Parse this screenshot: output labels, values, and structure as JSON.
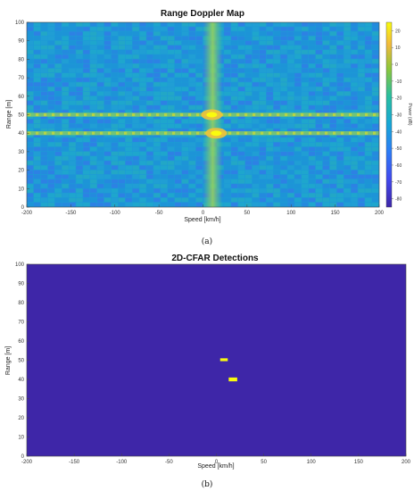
{
  "chart_data": [
    {
      "type": "heatmap",
      "title": "Range Doppler Map",
      "xlabel": "Speed [km/h]",
      "ylabel": "Range [m]",
      "xlim": [
        -200,
        200
      ],
      "ylim": [
        0,
        100
      ],
      "xticks": [
        -200,
        -150,
        -100,
        -50,
        0,
        50,
        100,
        150,
        200
      ],
      "yticks": [
        0,
        10,
        20,
        30,
        40,
        50,
        60,
        70,
        80,
        90,
        100
      ],
      "colormap": "parula",
      "colorbar": {
        "label": "Power (dB)",
        "range": [
          -85,
          25
        ],
        "ticks": [
          20,
          10,
          0,
          -10,
          -20,
          -30,
          -40,
          -50,
          -60,
          -70,
          -80
        ]
      },
      "targets": [
        {
          "speed": 10,
          "range": 50,
          "power_db": 20
        },
        {
          "speed": 15,
          "range": 40,
          "power_db": 20
        }
      ],
      "background_power_db": -55,
      "sublabel": "(a)"
    },
    {
      "type": "heatmap",
      "title": "2D-CFAR Detections",
      "xlabel": "Speed [km/h]",
      "ylabel": "Range [m]",
      "xlim": [
        -200,
        200
      ],
      "ylim": [
        0,
        100
      ],
      "xticks": [
        -200,
        -150,
        -100,
        -50,
        0,
        50,
        100,
        150,
        200
      ],
      "yticks": [
        0,
        10,
        20,
        30,
        40,
        50,
        60,
        70,
        80,
        90,
        100
      ],
      "background_color": "#3e26a8",
      "detection_color": "#f9fb0e",
      "detections": [
        {
          "x": [
            4,
            12
          ],
          "y": [
            49.5,
            51
          ]
        },
        {
          "x": [
            13,
            22
          ],
          "y": [
            39,
            41
          ]
        }
      ],
      "sublabel": "(b)"
    }
  ]
}
